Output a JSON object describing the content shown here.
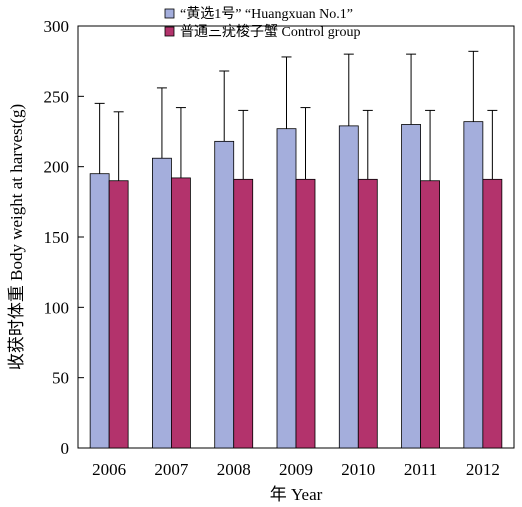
{
  "chart_data": {
    "type": "bar",
    "categories": [
      "2006",
      "2007",
      "2008",
      "2009",
      "2010",
      "2011",
      "2012"
    ],
    "series": [
      {
        "name": "“黄选1号” “Huangxuan No.1”",
        "color": "#a4aedc",
        "values": [
          195,
          206,
          218,
          227,
          229,
          230,
          232
        ],
        "error": [
          50,
          50,
          50,
          51,
          51,
          50,
          50
        ]
      },
      {
        "name": "普通三疣梭子蟹 Control group",
        "color": "#b3336c",
        "values": [
          190,
          192,
          191,
          191,
          191,
          190,
          191
        ],
        "error": [
          49,
          50,
          49,
          51,
          49,
          50,
          49
        ]
      }
    ],
    "xlabel": "年 Year",
    "ylabel": "收获时体重 Body weight at harvest(g)",
    "ylim": [
      0,
      300
    ],
    "yticks": [
      0,
      50,
      100,
      150,
      200,
      250,
      300
    ],
    "grid": false,
    "legend_position": "top-center"
  }
}
